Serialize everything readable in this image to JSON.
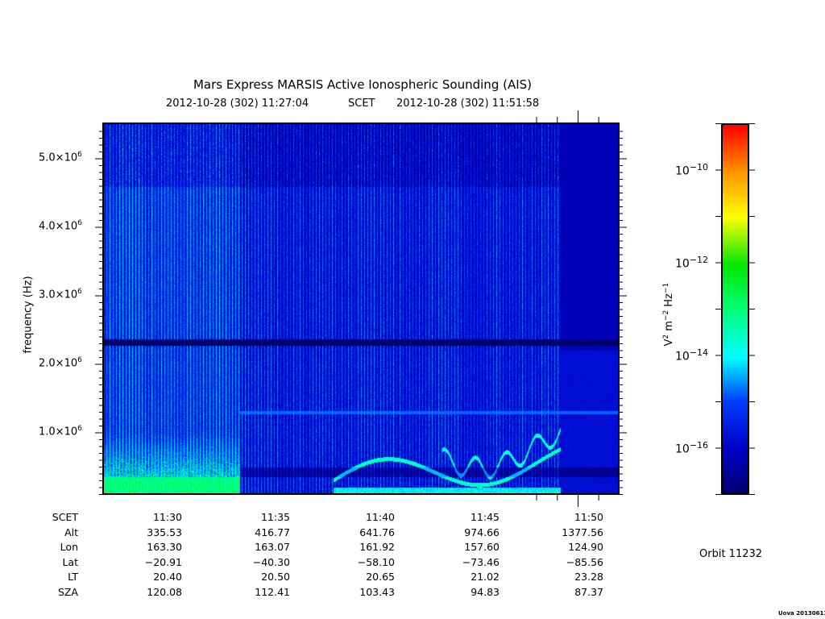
{
  "chart_data": {
    "type": "heatmap",
    "title": "Mars Express MARSIS Active Ionospheric Sounding (AIS)",
    "start_time": "2012-10-28 (302) 11:27:04",
    "time_label": "SCET",
    "end_time": "2012-10-28 (302) 11:51:58",
    "ylabel": "frequency (Hz)",
    "ylim_hz": [
      100000,
      5500000
    ],
    "y_ticks": [
      {
        "value": 1000000,
        "mant": "1.0×10",
        "exp": "6"
      },
      {
        "value": 2000000,
        "mant": "2.0×10",
        "exp": "6"
      },
      {
        "value": 3000000,
        "mant": "3.0×10",
        "exp": "6"
      },
      {
        "value": 4000000,
        "mant": "4.0×10",
        "exp": "6"
      },
      {
        "value": 5000000,
        "mant": "5.0×10",
        "exp": "6"
      }
    ],
    "xlim_seconds_of_day": [
      40024,
      41518
    ],
    "colorbar": {
      "label_parts": [
        "V",
        "2",
        " m",
        "−2",
        " Hz",
        "−1"
      ],
      "log_range": [
        -17,
        -9
      ],
      "ticks": [
        {
          "value": -10,
          "base": "10",
          "exp": "−10"
        },
        {
          "value": -12,
          "base": "10",
          "exp": "−12"
        },
        {
          "value": -14,
          "base": "10",
          "exp": "−14"
        },
        {
          "value": -16,
          "base": "10",
          "exp": "−16"
        }
      ]
    }
  },
  "ephemeris": {
    "rows": [
      {
        "label": "SCET",
        "values": [
          "11:30",
          "11:35",
          "11:40",
          "11:45",
          "11:50"
        ]
      },
      {
        "label": "Alt",
        "values": [
          "335.53",
          "416.77",
          "641.76",
          "974.66",
          "1377.56"
        ]
      },
      {
        "label": "Lon",
        "values": [
          "163.30",
          "163.07",
          "161.92",
          "157.60",
          "124.90"
        ]
      },
      {
        "label": "Lat",
        "values": [
          "−20.91",
          "−40.30",
          "−58.10",
          "−73.46",
          "−85.56"
        ]
      },
      {
        "label": "LT",
        "values": [
          "20.40",
          "20.50",
          "20.65",
          "21.02",
          "23.28"
        ]
      },
      {
        "label": "SZA",
        "values": [
          "120.08",
          "112.41",
          "103.43",
          "94.83",
          "87.37"
        ]
      }
    ]
  },
  "orbit": "Orbit 11232",
  "credit": "Uova 20130611"
}
